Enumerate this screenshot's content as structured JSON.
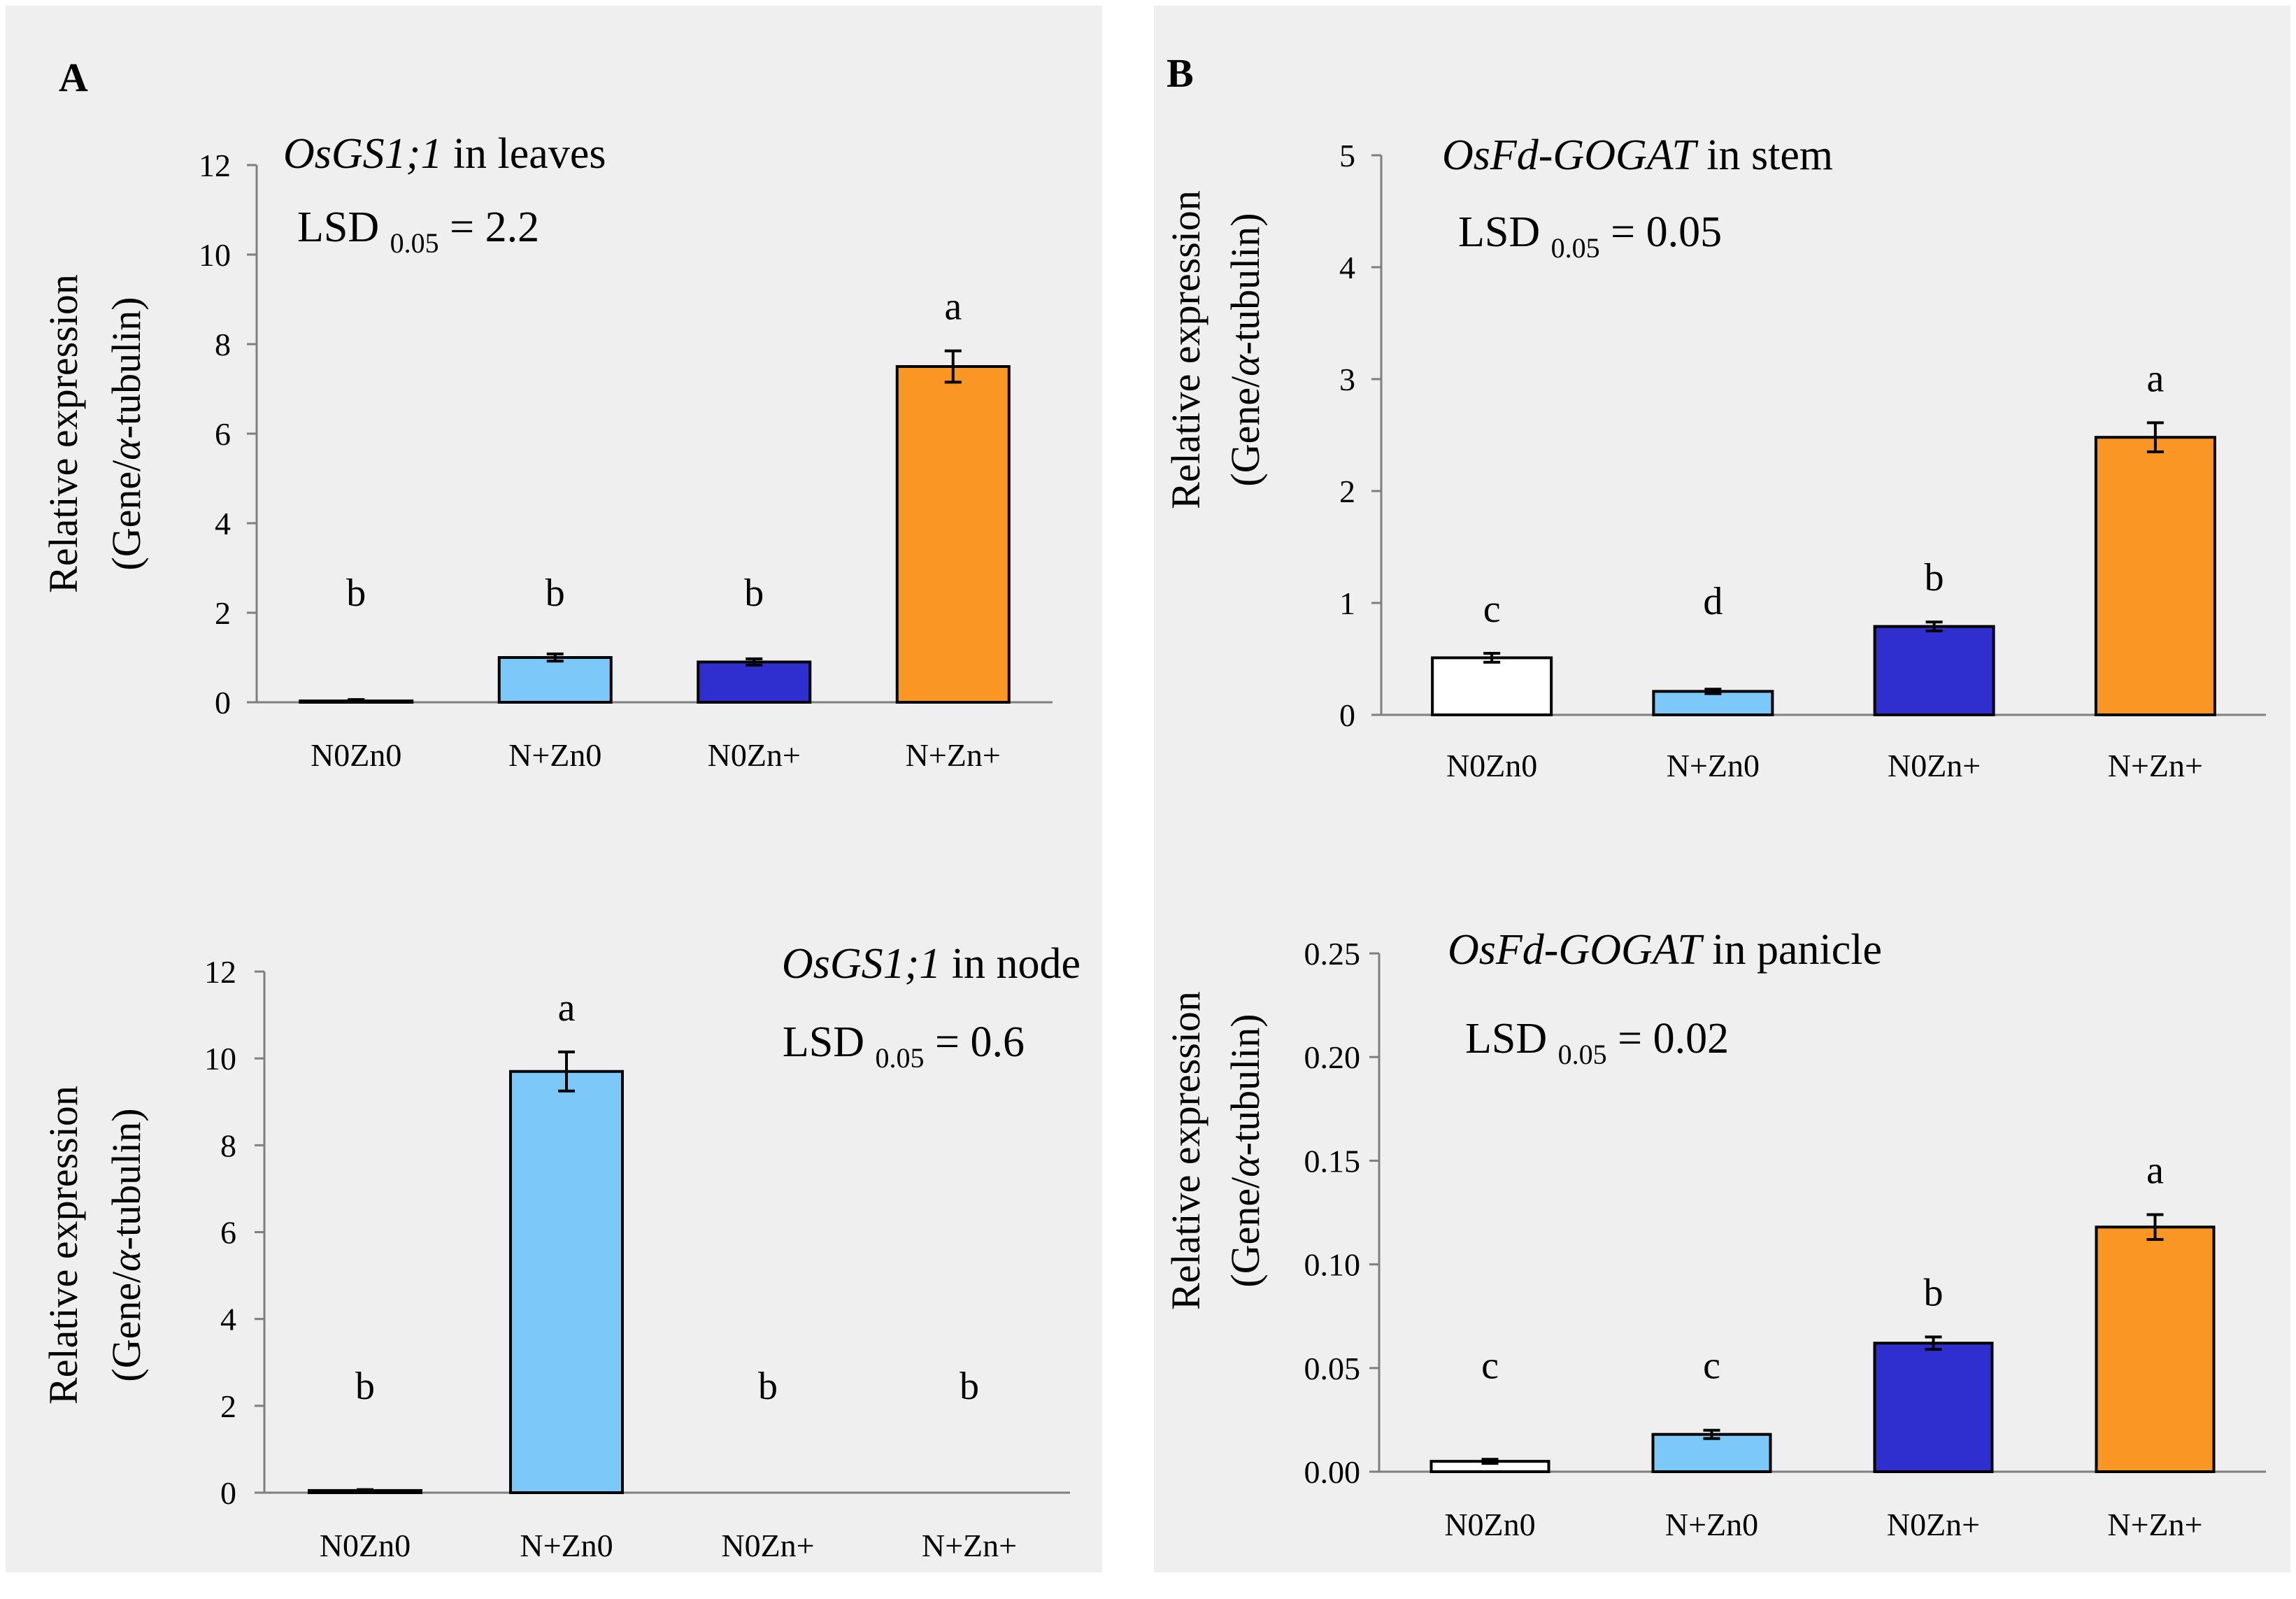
{
  "panels": [
    {
      "label": "A"
    },
    {
      "label": "B"
    }
  ],
  "colors": {
    "panel_bg": "#efefef",
    "N0Zn0": "#ffffff",
    "N+Zn0": "#7cc8f8",
    "N0Zn+": "#2f2fcf",
    "N+Zn+": "#fa9624",
    "outline": "#000000"
  },
  "chart_data": [
    {
      "type": "bar",
      "panel": "A",
      "gene": "OsGS1;1",
      "tissue": "in leaves",
      "lsd_prefix": "LSD",
      "lsd_sub": "0.05",
      "lsd_value": "= 2.2",
      "ylabel_line1": "Relative expression",
      "ylabel_line2_prefix": "(Gene/",
      "ylabel_line2_alpha": "α",
      "ylabel_line2_suffix": "-tubulin)",
      "categories": [
        "N0Zn0",
        "N+Zn0",
        "N0Zn+",
        "N+Zn+"
      ],
      "values": [
        0.03,
        1.0,
        0.9,
        7.5
      ],
      "errors": [
        0.03,
        0.08,
        0.07,
        0.35
      ],
      "letters": [
        "b",
        "b",
        "b",
        "a"
      ],
      "ylim": [
        0,
        12
      ],
      "yticks": [
        "0",
        "2",
        "4",
        "6",
        "8",
        "10",
        "12"
      ]
    },
    {
      "type": "bar",
      "panel": "A",
      "gene": "OsGS1;1",
      "tissue": "in node",
      "lsd_prefix": "LSD",
      "lsd_sub": "0.05",
      "lsd_value": "= 0.6",
      "ylabel_line1": "Relative expression",
      "ylabel_line2_prefix": "(Gene/",
      "ylabel_line2_alpha": "α",
      "ylabel_line2_suffix": "-tubulin)",
      "categories": [
        "N0Zn0",
        "N+Zn0",
        "N0Zn+",
        "N+Zn+"
      ],
      "values": [
        0.05,
        9.7,
        0.0,
        0.0
      ],
      "errors": [
        0.02,
        0.45,
        0.0,
        0.0
      ],
      "letters": [
        "b",
        "a",
        "b",
        "b"
      ],
      "ylim": [
        0,
        12
      ],
      "yticks": [
        "0",
        "2",
        "4",
        "6",
        "8",
        "10",
        "12"
      ]
    },
    {
      "type": "bar",
      "panel": "B",
      "gene": "OsFd-GOGAT",
      "tissue": "in stem",
      "lsd_prefix": "LSD",
      "lsd_sub": "0.05",
      "lsd_value": "= 0.05",
      "ylabel_line1": "Relative expression",
      "ylabel_line2_prefix": "(Gene/",
      "ylabel_line2_alpha": "α",
      "ylabel_line2_suffix": "-tubulin)",
      "categories": [
        "N0Zn0",
        "N+Zn0",
        "N0Zn+",
        "N+Zn+"
      ],
      "values": [
        0.51,
        0.21,
        0.79,
        2.48
      ],
      "errors": [
        0.04,
        0.02,
        0.04,
        0.13
      ],
      "letters": [
        "c",
        "d",
        "b",
        "a"
      ],
      "ylim": [
        0,
        5
      ],
      "yticks": [
        "0",
        "1",
        "2",
        "3",
        "4",
        "5"
      ]
    },
    {
      "type": "bar",
      "panel": "B",
      "gene": "OsFd-GOGAT",
      "tissue": "in panicle",
      "lsd_prefix": "LSD",
      "lsd_sub": "0.05",
      "lsd_value": "= 0.02",
      "ylabel_line1": "Relative expression",
      "ylabel_line2_prefix": "(Gene/",
      "ylabel_line2_alpha": "α",
      "ylabel_line2_suffix": "-tubulin)",
      "categories": [
        "N0Zn0",
        "N+Zn0",
        "N0Zn+",
        "N+Zn+"
      ],
      "values": [
        0.005,
        0.018,
        0.062,
        0.118
      ],
      "errors": [
        0.001,
        0.002,
        0.003,
        0.006
      ],
      "letters": [
        "c",
        "c",
        "b",
        "a"
      ],
      "ylim": [
        0,
        0.25
      ],
      "yticks": [
        "0.00",
        "0.05",
        "0.10",
        "0.15",
        "0.20",
        "0.25"
      ]
    }
  ]
}
